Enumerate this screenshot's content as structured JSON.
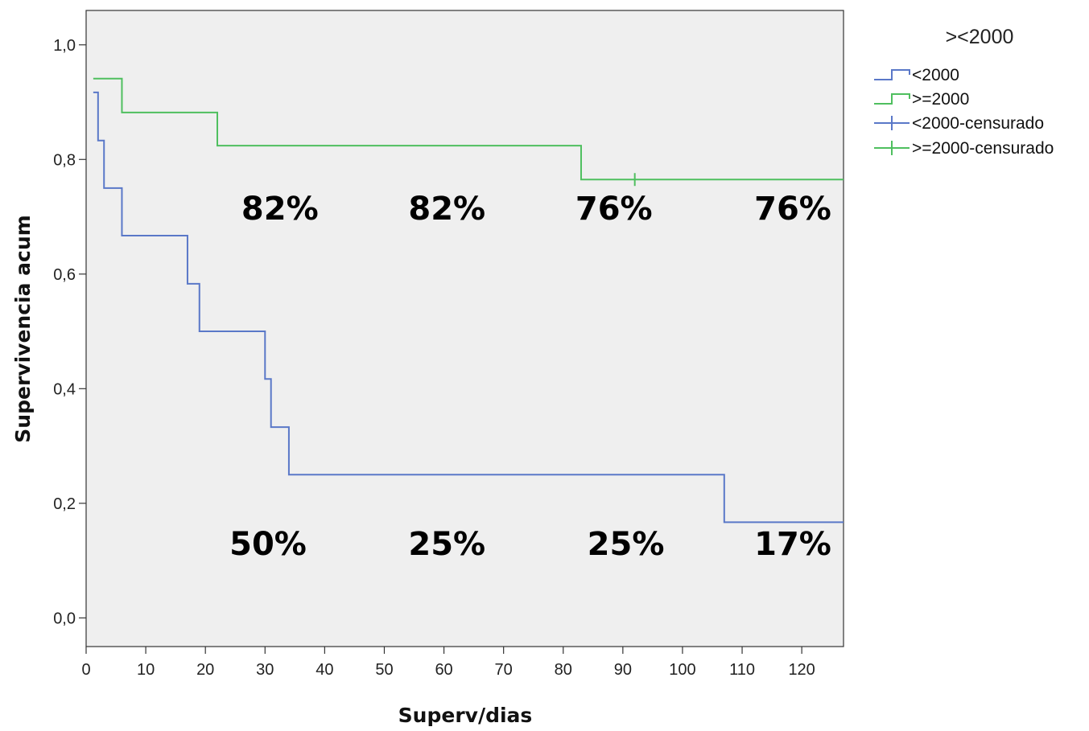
{
  "chart_data": {
    "type": "line",
    "subtype": "kaplan-meier-step",
    "xlabel": "Superv/dias",
    "ylabel": "Supervivencia acum",
    "xlim": [
      0,
      127
    ],
    "ylim": [
      -0.05,
      1.06
    ],
    "x_ticks": [
      "0",
      "10",
      "20",
      "30",
      "40",
      "50",
      "60",
      "70",
      "80",
      "90",
      "100",
      "110",
      "120"
    ],
    "x_tick_values": [
      0,
      10,
      20,
      30,
      40,
      50,
      60,
      70,
      80,
      90,
      100,
      110,
      120
    ],
    "y_ticks": [
      "0,0",
      "0,2",
      "0,4",
      "0,6",
      "0,8",
      "1,0"
    ],
    "y_tick_values": [
      0.0,
      0.2,
      0.4,
      0.6,
      0.8,
      1.0
    ],
    "background": "#efefef",
    "legend": {
      "title": "><2000",
      "position": "right",
      "entries": [
        {
          "label": "<2000",
          "kind": "step",
          "color": "#5a78c8"
        },
        {
          "label": ">=2000",
          "kind": "step",
          "color": "#4fbf5f"
        },
        {
          "label": "<2000-censurado",
          "kind": "cross",
          "color": "#5a78c8"
        },
        {
          "label": ">=2000-censurado",
          "kind": "cross",
          "color": "#4fbf5f"
        }
      ]
    },
    "series": [
      {
        "name": "<2000",
        "color": "#5a78c8",
        "points": [
          [
            1.2,
            0.917
          ],
          [
            2,
            0.833
          ],
          [
            3,
            0.75
          ],
          [
            6,
            0.667
          ],
          [
            17,
            0.583
          ],
          [
            19,
            0.5
          ],
          [
            30,
            0.417
          ],
          [
            31,
            0.333
          ],
          [
            34,
            0.25
          ],
          [
            107,
            0.167
          ],
          [
            127,
            0.167
          ]
        ],
        "censored": []
      },
      {
        "name": ">=2000",
        "color": "#4fbf5f",
        "points": [
          [
            1.2,
            0.941
          ],
          [
            6,
            0.882
          ],
          [
            22,
            0.824
          ],
          [
            83,
            0.765
          ],
          [
            127,
            0.765
          ]
        ],
        "censored": [
          [
            92,
            0.765
          ]
        ]
      }
    ],
    "annotations": [
      {
        "text": "82%",
        "x": 32.5,
        "y": 0.695
      },
      {
        "text": "82%",
        "x": 60.5,
        "y": 0.695
      },
      {
        "text": "76%",
        "x": 88.5,
        "y": 0.695
      },
      {
        "text": "76%",
        "x": 118.5,
        "y": 0.695
      },
      {
        "text": "50%",
        "x": 30.5,
        "y": 0.11
      },
      {
        "text": "25%",
        "x": 60.5,
        "y": 0.11
      },
      {
        "text": "25%",
        "x": 90.5,
        "y": 0.11
      },
      {
        "text": "17%",
        "x": 118.5,
        "y": 0.11
      }
    ]
  }
}
